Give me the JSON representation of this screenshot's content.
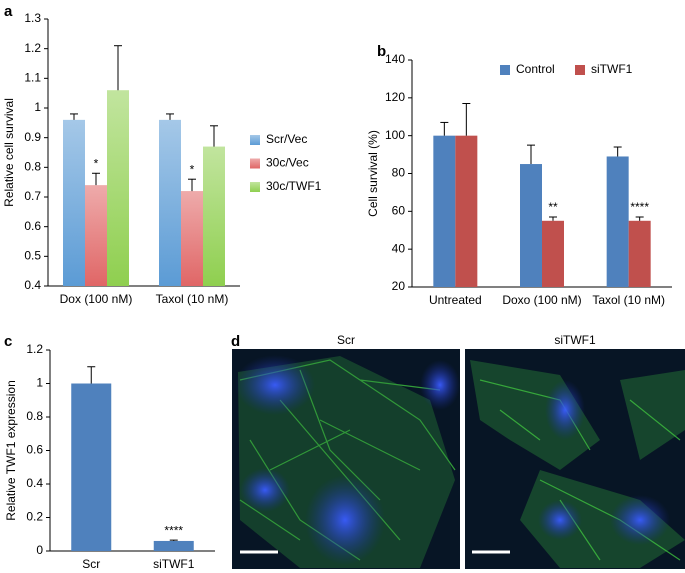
{
  "panels": {
    "a": "a",
    "b": "b",
    "c": "c",
    "d": "d"
  },
  "chart_data": [
    {
      "type": "bar",
      "y_label": "Relative cell survival",
      "categories": [
        "Dox (100 nM)",
        "Taxol (10 nM)"
      ],
      "series": [
        {
          "name": "Scr/Vec",
          "color": "#5b9bd5",
          "values": [
            0.96,
            0.96
          ],
          "errors": [
            0.02,
            0.02
          ]
        },
        {
          "name": "30c/Vec",
          "color": "#e06666",
          "values": [
            0.74,
            0.72
          ],
          "errors": [
            0.04,
            0.04
          ],
          "significance": [
            "*",
            "*"
          ]
        },
        {
          "name": "30c/TWF1",
          "color": "#8fcf4f",
          "values": [
            1.06,
            0.87
          ],
          "errors": [
            0.15,
            0.07
          ]
        }
      ],
      "ylim": [
        0.4,
        1.3
      ],
      "yticks": [
        0.4,
        0.5,
        0.6,
        0.7,
        0.8,
        0.9,
        1,
        1.1,
        1.2,
        1.3
      ],
      "legend": "right",
      "gradient": true
    },
    {
      "type": "bar",
      "y_label": "Cell survival (%)",
      "categories": [
        "Untreated",
        "Doxo (100 nM)",
        "Taxol (10 nM)"
      ],
      "series": [
        {
          "name": "Control",
          "color": "#4f81bd",
          "values": [
            100,
            85,
            89
          ],
          "errors": [
            7,
            10,
            5
          ]
        },
        {
          "name": "siTWF1",
          "color": "#c0504d",
          "values": [
            100,
            55,
            55
          ],
          "errors": [
            17,
            2,
            2
          ],
          "significance": [
            null,
            "**",
            "****"
          ]
        }
      ],
      "ylim": [
        20,
        140
      ],
      "yticks": [
        20,
        40,
        60,
        80,
        100,
        120,
        140
      ],
      "legend": "top",
      "gradient": false
    },
    {
      "type": "bar",
      "y_label": "Relative TWF1 expression",
      "categories": [
        "Scr",
        "siTWF1"
      ],
      "series": [
        {
          "color": "#4f81bd",
          "values": [
            1.0,
            0.06
          ],
          "errors": [
            0.1,
            0.005
          ],
          "significance": [
            null,
            "****"
          ]
        }
      ],
      "ylim": [
        0,
        1.2
      ],
      "yticks": [
        0,
        0.2,
        0.4,
        0.6,
        0.8,
        1,
        1.2
      ],
      "gradient": false
    }
  ],
  "images": [
    {
      "label": "Scr"
    },
    {
      "label": "siTWF1"
    }
  ]
}
